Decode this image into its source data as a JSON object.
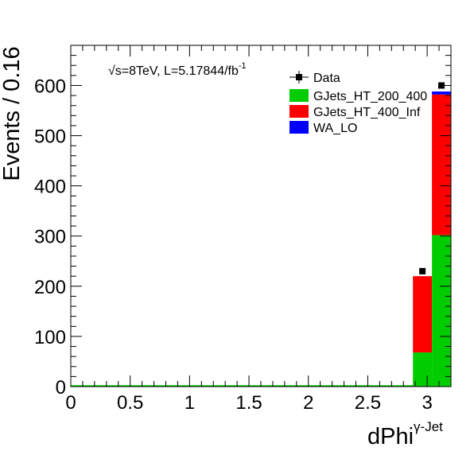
{
  "chart_data": {
    "type": "bar",
    "stacked": true,
    "xlabel": "dPhi",
    "xlabel_superscript": "γ-Jet",
    "ylabel": "Events / 0.16",
    "xlim": [
      0,
      3.2
    ],
    "ylim": [
      0,
      680
    ],
    "x_ticks": [
      "0",
      "0.5",
      "1",
      "1.5",
      "2",
      "2.5",
      "3"
    ],
    "y_ticks": [
      "0",
      "100",
      "200",
      "300",
      "400",
      "500",
      "600"
    ],
    "lumi_label": {
      "sqrt": "√",
      "s_eq": "s=8TeV, L=5.17844/fb",
      "sup": "-1"
    },
    "bins": [
      {
        "lo": 2.88,
        "hi": 3.04
      },
      {
        "lo": 3.04,
        "hi": 3.2
      }
    ],
    "series": [
      {
        "name": "GJets_HT_200_400",
        "color": "#00cc00",
        "values": [
          68,
          302
        ]
      },
      {
        "name": "GJets_HT_400_Inf",
        "color": "#ff0000",
        "values": [
          152,
          280
        ]
      },
      {
        "name": "WA_LO",
        "color": "#0000ff",
        "values": [
          0,
          6
        ]
      }
    ],
    "data_points": {
      "name": "Data",
      "x": [
        2.96,
        3.12
      ],
      "y": [
        230,
        600
      ]
    },
    "legend": {
      "placement": "top-right",
      "entries": [
        {
          "label": "Data",
          "style": "marker"
        },
        {
          "label": "GJets_HT_200_400",
          "style": "fill",
          "color": "#00cc00"
        },
        {
          "label": "GJets_HT_400_Inf",
          "style": "fill",
          "color": "#ff0000"
        },
        {
          "label": "WA_LO",
          "style": "fill",
          "color": "#0000ff"
        }
      ]
    },
    "grid": false
  }
}
